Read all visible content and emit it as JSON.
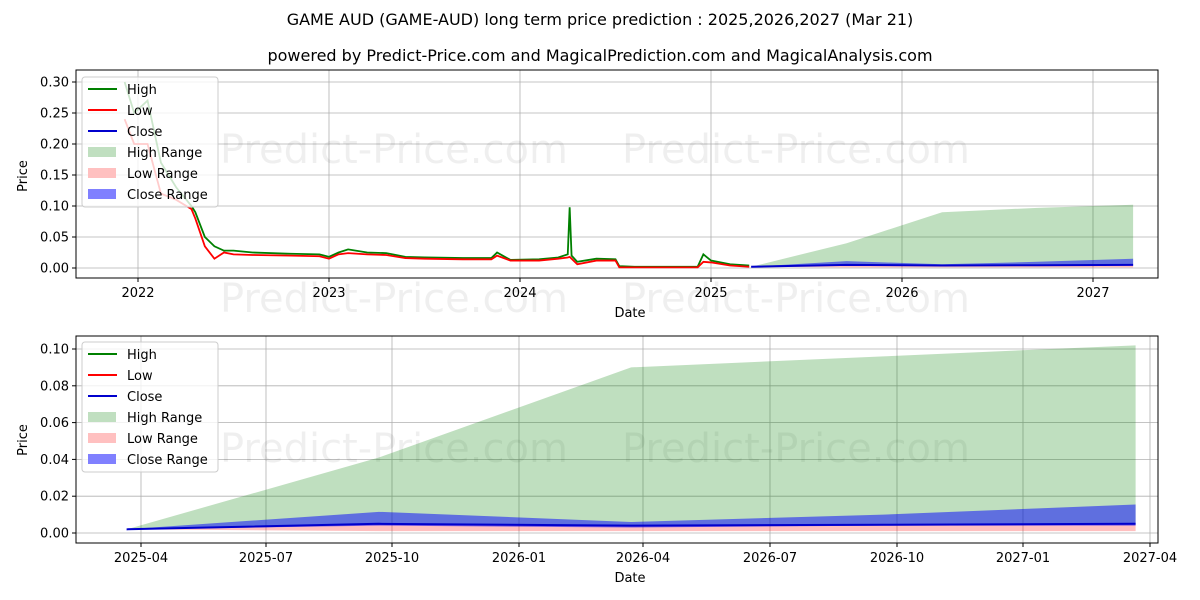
{
  "header": {
    "title": "GAME AUD (GAME-AUD) long term price prediction : 2025,2026,2027 (Mar 21)",
    "subtitle": "powered by Predict-Price.com and MagicalPrediction.com and MagicalAnalysis.com"
  },
  "watermark": "Predict-Price.com",
  "legend": {
    "items": [
      {
        "label": "High",
        "kind": "line",
        "color": "#008000"
      },
      {
        "label": "Low",
        "kind": "line",
        "color": "#ff0000"
      },
      {
        "label": "Close",
        "kind": "line",
        "color": "#0000cd"
      },
      {
        "label": "High Range",
        "kind": "patch",
        "color": "#c0dfc0"
      },
      {
        "label": "Low Range",
        "kind": "patch",
        "color": "#ffc0c0"
      },
      {
        "label": "Close Range",
        "kind": "patch",
        "color": "#8080ff"
      }
    ]
  },
  "chart_data": [
    {
      "type": "line",
      "title": "Historical and predicted price (full range)",
      "xlabel": "Date",
      "ylabel": "Price",
      "xticks": [
        "2022",
        "2023",
        "2024",
        "2025",
        "2026",
        "2027"
      ],
      "yticks": [
        "0.00",
        "0.05",
        "0.10",
        "0.15",
        "0.20",
        "0.25",
        "0.30"
      ],
      "ylim": [
        -0.01,
        0.31
      ],
      "grid": true,
      "legend_position": "upper left",
      "series": [
        {
          "name": "High",
          "x": [
            2021.93,
            2021.98,
            2022.05,
            2022.12,
            2022.2,
            2022.28,
            2022.3,
            2022.35,
            2022.4,
            2022.45,
            2022.5,
            2022.6,
            2022.8,
            2022.95,
            2023.0,
            2023.05,
            2023.1,
            2023.2,
            2023.3,
            2023.4,
            2023.5,
            2023.7,
            2023.85,
            2023.88,
            2023.95,
            2024.1,
            2024.2,
            2024.25,
            2024.26,
            2024.27,
            2024.3,
            2024.4,
            2024.5,
            2024.52,
            2024.6,
            2024.8,
            2024.93,
            2024.96,
            2025.0,
            2025.1,
            2025.2
          ],
          "values": [
            0.3,
            0.25,
            0.27,
            0.17,
            0.13,
            0.1,
            0.09,
            0.05,
            0.035,
            0.028,
            0.028,
            0.025,
            0.023,
            0.022,
            0.018,
            0.025,
            0.03,
            0.025,
            0.024,
            0.018,
            0.017,
            0.016,
            0.016,
            0.025,
            0.013,
            0.014,
            0.017,
            0.022,
            0.098,
            0.02,
            0.01,
            0.015,
            0.014,
            0.003,
            0.002,
            0.002,
            0.002,
            0.022,
            0.012,
            0.006,
            0.004
          ]
        },
        {
          "name": "Low",
          "x": [
            2021.93,
            2021.98,
            2022.05,
            2022.12,
            2022.2,
            2022.28,
            2022.3,
            2022.35,
            2022.4,
            2022.45,
            2022.5,
            2022.6,
            2022.8,
            2022.95,
            2023.0,
            2023.05,
            2023.1,
            2023.2,
            2023.3,
            2023.4,
            2023.5,
            2023.7,
            2023.85,
            2023.88,
            2023.95,
            2024.1,
            2024.2,
            2024.25,
            2024.26,
            2024.27,
            2024.3,
            2024.4,
            2024.5,
            2024.52,
            2024.6,
            2024.8,
            2024.93,
            2024.96,
            2025.0,
            2025.1,
            2025.2
          ],
          "values": [
            0.24,
            0.2,
            0.2,
            0.12,
            0.11,
            0.095,
            0.08,
            0.035,
            0.015,
            0.025,
            0.022,
            0.021,
            0.02,
            0.019,
            0.015,
            0.022,
            0.024,
            0.022,
            0.021,
            0.016,
            0.015,
            0.014,
            0.014,
            0.02,
            0.012,
            0.012,
            0.015,
            0.017,
            0.018,
            0.015,
            0.006,
            0.012,
            0.012,
            0.001,
            0.001,
            0.001,
            0.001,
            0.01,
            0.009,
            0.004,
            0.002
          ]
        },
        {
          "name": "Close",
          "x": [
            2025.21,
            2025.71,
            2026.21,
            2026.71,
            2027.21
          ],
          "values": [
            0.002,
            0.005,
            0.004,
            0.0045,
            0.005
          ]
        },
        {
          "name": "High Range",
          "x": [
            2025.21,
            2025.71,
            2026.21,
            2026.71,
            2027.21
          ],
          "lower": [
            0.002,
            0.005,
            0.004,
            0.0045,
            0.005
          ],
          "upper": [
            0.002,
            0.04,
            0.09,
            0.097,
            0.102
          ]
        },
        {
          "name": "Low Range",
          "x": [
            2025.21,
            2025.71,
            2026.21,
            2026.71,
            2027.21
          ],
          "lower": [
            0.002,
            0.001,
            0.001,
            0.001,
            0.001
          ],
          "upper": [
            0.002,
            0.005,
            0.004,
            0.0045,
            0.005
          ]
        },
        {
          "name": "Close Range",
          "x": [
            2025.21,
            2025.71,
            2026.21,
            2026.71,
            2027.21
          ],
          "lower": [
            0.002,
            0.004,
            0.003,
            0.004,
            0.004
          ],
          "upper": [
            0.002,
            0.011,
            0.006,
            0.01,
            0.015
          ]
        }
      ]
    },
    {
      "type": "line",
      "title": "Predicted price (zoomed)",
      "xlabel": "Date",
      "ylabel": "Price",
      "xticks": [
        "2025-04",
        "2025-07",
        "2025-10",
        "2026-01",
        "2026-04",
        "2026-07",
        "2026-10",
        "2027-01",
        "2027-04"
      ],
      "yticks": [
        "0.00",
        "0.02",
        "0.04",
        "0.06",
        "0.08",
        "0.10"
      ],
      "ylim": [
        -0.005,
        0.107
      ],
      "grid": true,
      "legend_position": "upper left",
      "x": [
        "2025-03-21",
        "2025-09-21",
        "2026-03-21",
        "2026-09-21",
        "2027-03-21"
      ],
      "series": [
        {
          "name": "Close",
          "values": [
            0.002,
            0.005,
            0.004,
            0.0045,
            0.005
          ]
        },
        {
          "name": "High Range",
          "lower": [
            0.002,
            0.005,
            0.004,
            0.0045,
            0.005
          ],
          "upper": [
            0.002,
            0.041,
            0.09,
            0.096,
            0.102
          ]
        },
        {
          "name": "Low Range",
          "lower": [
            0.002,
            0.001,
            0.001,
            0.001,
            0.001
          ],
          "upper": [
            0.002,
            0.005,
            0.004,
            0.0045,
            0.005
          ]
        },
        {
          "name": "Close Range",
          "lower": [
            0.002,
            0.004,
            0.003,
            0.004,
            0.004
          ],
          "upper": [
            0.002,
            0.0115,
            0.006,
            0.01,
            0.0155
          ]
        }
      ]
    }
  ]
}
